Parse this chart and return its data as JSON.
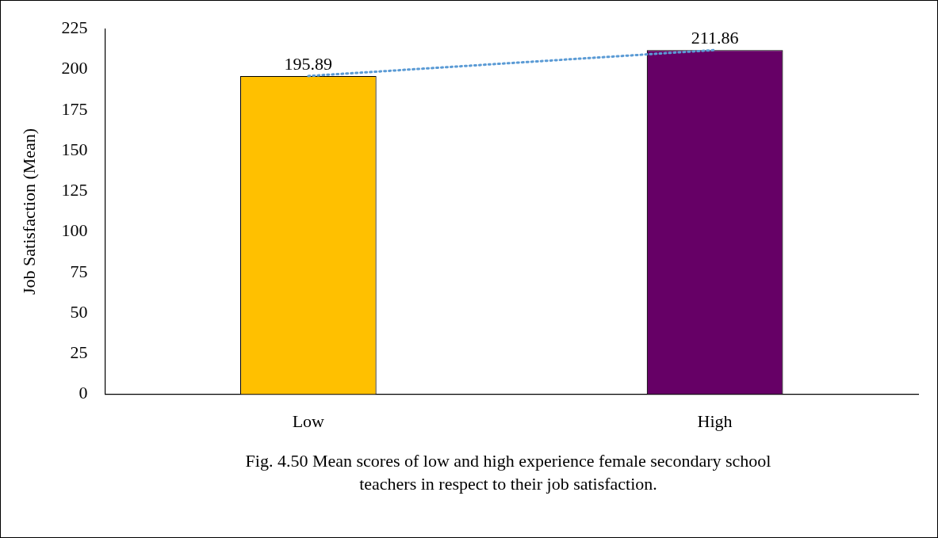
{
  "chart_data": {
    "type": "bar",
    "ylabel": "Job Satisfaction (Mean)",
    "categories": [
      "Low",
      "High"
    ],
    "series": [
      {
        "colors": [
          "#ffc000",
          "#660066"
        ],
        "values": [
          195.89,
          211.86
        ],
        "value_labels": [
          "195.89",
          "211.86"
        ]
      },
      {
        "type": "line",
        "color": "#5b9bd5",
        "values": [
          195.89,
          211.86
        ]
      }
    ],
    "ylim": [
      0,
      225
    ],
    "yticks": [
      0,
      25,
      50,
      75,
      100,
      125,
      150,
      175,
      200,
      225
    ],
    "grid": false,
    "line_style": "dotted",
    "marker": "none",
    "annotations": [
      "Fig. 4.50  Mean scores of low and high experience female secondary school teachers in respect to their job satisfaction."
    ]
  }
}
